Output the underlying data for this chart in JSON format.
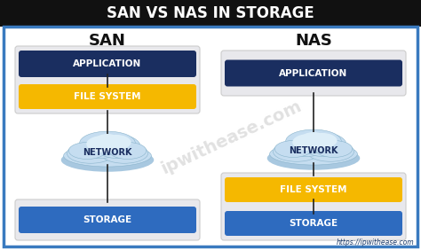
{
  "title": "SAN VS NAS IN STORAGE",
  "title_bg": "#111111",
  "title_color": "#ffffff",
  "main_bg": "#ffffff",
  "outer_border_color": "#3a7abf",
  "panel_bg": "#e8e8ec",
  "panel_border": "#cccccc",
  "san_label": "SAN",
  "nas_label": "NAS",
  "label_color": "#111111",
  "dark_blue": "#1a2e60",
  "gold": "#f5b800",
  "mid_blue": "#2e6bbf",
  "cloud_main": "#c5ddf0",
  "cloud_light": "#ddeef8",
  "cloud_border": "#8ab4cc",
  "footer": "https://ipwithease.com",
  "watermark": "ipwithease.com",
  "connector_color": "#222222"
}
